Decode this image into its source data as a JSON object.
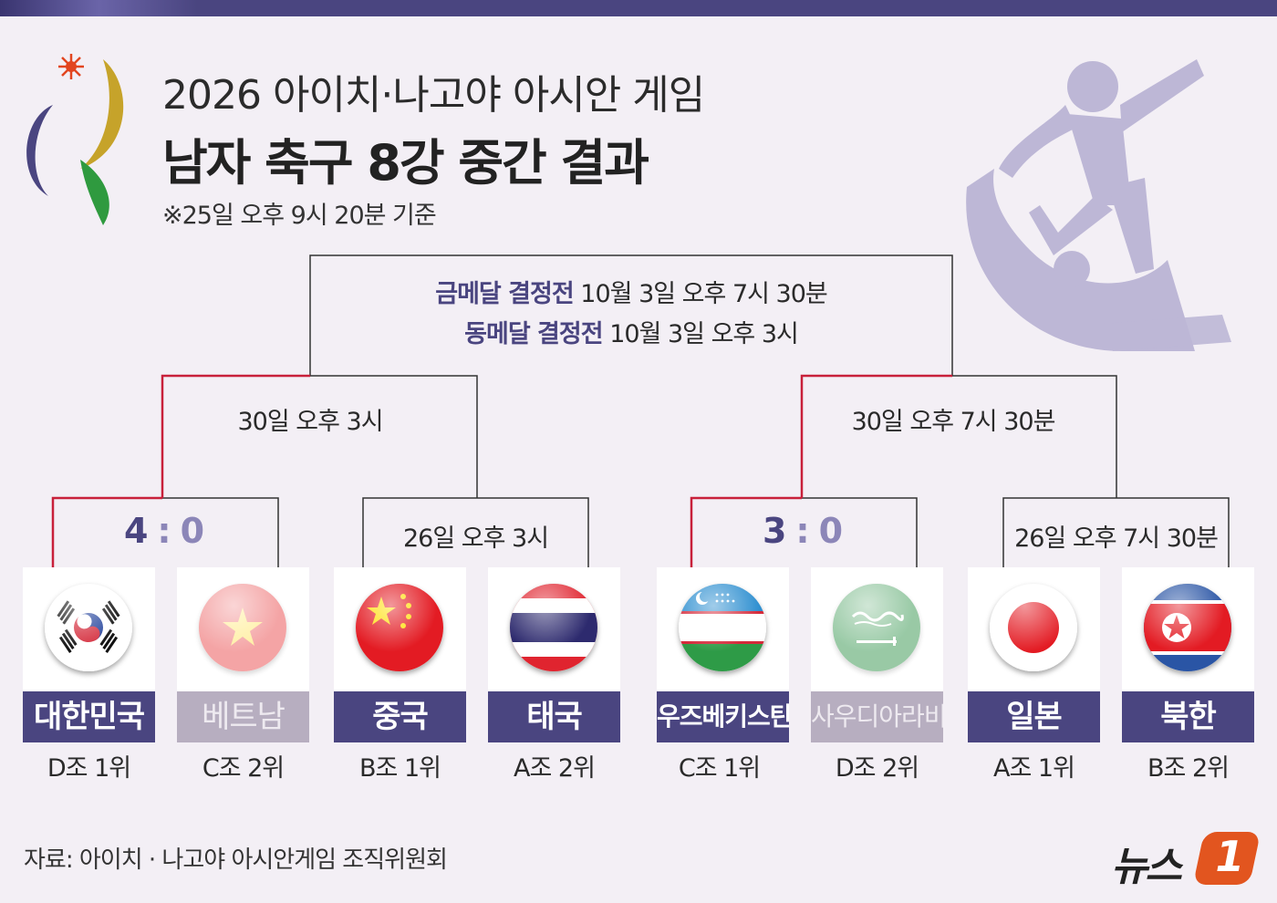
{
  "header": {
    "title_line1": "2026 아이치·나고야 아시안 게임",
    "title_line2": "남자 축구 8강 중간 결과",
    "note": "※25일 오후 9시 20분 기준"
  },
  "final": {
    "gold_label": "금메달 결정전",
    "gold_time": "10월 3일 오후 7시 30분",
    "bronze_label": "동메달 결정전",
    "bronze_time": "10월 3일 오후 3시"
  },
  "semifinals": {
    "left_time": "30일 오후 3시",
    "right_time": "30일 오후 7시 30분"
  },
  "quarterfinals": [
    {
      "score_home": "4",
      "score_sep": ":",
      "score_away": "0",
      "time": ""
    },
    {
      "score_home": "",
      "score_sep": "",
      "score_away": "",
      "time": "26일 오후 3시"
    },
    {
      "score_home": "3",
      "score_sep": ":",
      "score_away": "0",
      "time": ""
    },
    {
      "score_home": "",
      "score_sep": "",
      "score_away": "",
      "time": "26일 오후 7시 30분"
    }
  ],
  "teams": [
    {
      "name": "대한민국",
      "rank": "D조 1위",
      "eliminated": false,
      "flag": "korea-flag"
    },
    {
      "name": "베트남",
      "rank": "C조 2위",
      "eliminated": true,
      "flag": "vietnam-flag"
    },
    {
      "name": "중국",
      "rank": "B조 1위",
      "eliminated": false,
      "flag": "china-flag"
    },
    {
      "name": "태국",
      "rank": "A조 2위",
      "eliminated": false,
      "flag": "thailand-flag"
    },
    {
      "name": "우즈베키스탄",
      "rank": "C조 1위",
      "eliminated": false,
      "flag": "uzbekistan-flag"
    },
    {
      "name": "사우디아라비아",
      "rank": "D조 2위",
      "eliminated": true,
      "flag": "saudi-arabia-flag"
    },
    {
      "name": "일본",
      "rank": "A조 1위",
      "eliminated": false,
      "flag": "japan-flag"
    },
    {
      "name": "북한",
      "rank": "B조 2위",
      "eliminated": false,
      "flag": "north-korea-flag"
    }
  ],
  "footer": {
    "source": "자료: 아이치 · 나고야 아시안게임 조직위원회",
    "brand_text": "뉴스",
    "brand_badge": "1"
  },
  "colors": {
    "accent": "#4a4580",
    "winner_line": "#c8203a",
    "eliminated": "#b7aec0",
    "brand": "#e2551f"
  }
}
